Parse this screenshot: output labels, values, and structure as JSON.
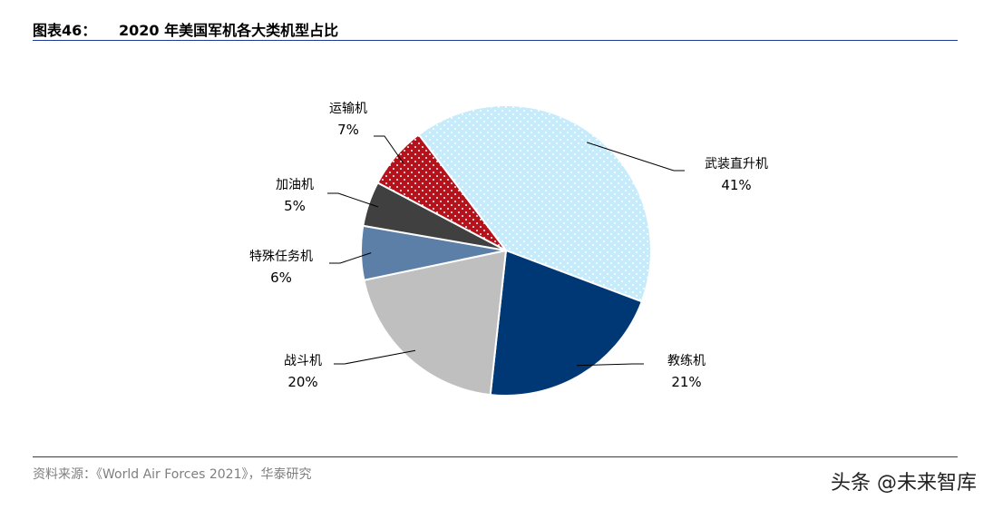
{
  "header": {
    "figure_label": "图表46：",
    "figure_title": "2020 年美国军机各大类机型占比"
  },
  "chart_data": {
    "type": "pie",
    "title": "2020 年美国军机各大类机型占比",
    "slices": [
      {
        "label": "武装直升机",
        "value": 41,
        "display": "41%",
        "color": "#c6ecfb",
        "pattern": "dots-white"
      },
      {
        "label": "教练机",
        "value": 21,
        "display": "21%",
        "color": "#003876",
        "pattern": "none"
      },
      {
        "label": "战斗机",
        "value": 20,
        "display": "20%",
        "color": "#bfbfbf",
        "pattern": "none"
      },
      {
        "label": "特殊任务机",
        "value": 6,
        "display": "6%",
        "color": "#5b7fa6",
        "pattern": "none"
      },
      {
        "label": "加油机",
        "value": 5,
        "display": "5%",
        "color": "#404040",
        "pattern": "none"
      },
      {
        "label": "运输机",
        "value": 7,
        "display": "7%",
        "color": "#b5121b",
        "pattern": "dots-white"
      }
    ]
  },
  "footer": {
    "source": "资料来源：《World Air Forces 2021》，华泰研究",
    "watermark": "头条 @未来智库"
  }
}
